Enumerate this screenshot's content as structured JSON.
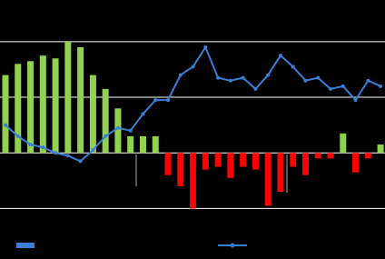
{
  "chart_data": {
    "type": "bar-line",
    "ylim": [
      -1.5,
      2.75
    ],
    "yticks": [
      -1,
      0,
      1,
      2
    ],
    "grid": true,
    "positive_color": "#92d050",
    "negative_color": "#ff0000",
    "series": [
      {
        "type": "bar",
        "values": [
          1.4,
          1.6,
          1.65,
          1.75,
          1.7,
          2.0,
          1.9,
          1.4,
          1.15,
          0.8,
          0.3,
          0.3,
          0.3,
          -0.4,
          -0.6,
          -1.0,
          -0.3,
          -0.25,
          -0.45,
          -0.25,
          -0.3,
          -0.95,
          -0.7,
          -0.25,
          -0.4,
          -0.1,
          -0.1,
          0.35,
          -0.35,
          -0.1,
          0.15
        ]
      },
      {
        "type": "line",
        "color": "#3a7fd5",
        "values": [
          0.5,
          0.3,
          0.15,
          0.1,
          0,
          -0.05,
          -0.15,
          0.05,
          0.3,
          0.45,
          0.4,
          0.7,
          0.95,
          0.95,
          1.4,
          1.55,
          1.9,
          1.35,
          1.3,
          1.35,
          1.15,
          1.4,
          1.75,
          1.55,
          1.3,
          1.35,
          1.15,
          1.2,
          0.95,
          1.3,
          1.2
        ]
      }
    ]
  }
}
